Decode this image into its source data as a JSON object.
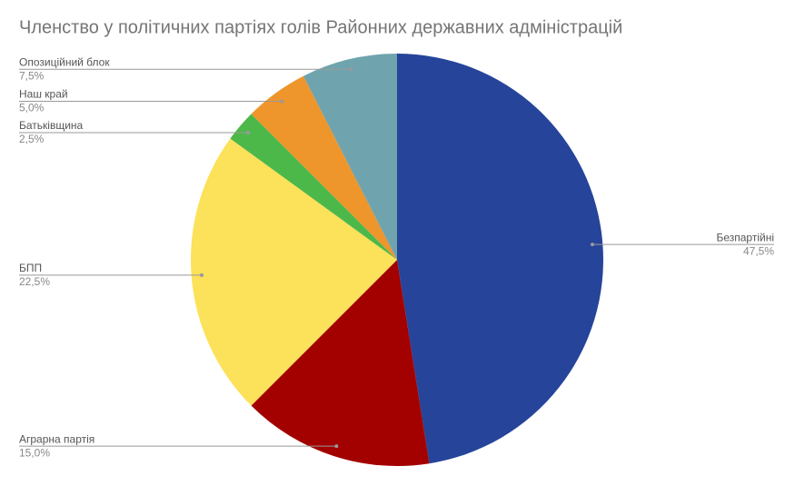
{
  "chart_data": {
    "type": "pie",
    "title": "Членство у політичних партіях голів Районних державних адміністрацій",
    "categories": [
      "Безпартійні",
      "Аграрна партія",
      "БПП",
      "Батьківщина",
      "Наш край",
      "Опозиційний блок"
    ],
    "values": [
      47.5,
      15.0,
      22.5,
      2.5,
      5.0,
      7.5
    ],
    "value_labels": [
      "47,5%",
      "15,0%",
      "22,5%",
      "2,5%",
      "5,0%",
      "7,5%"
    ],
    "colors": [
      "#25449a",
      "#a30000",
      "#fce15a",
      "#4db84a",
      "#ee952b",
      "#6fa4ae"
    ]
  }
}
